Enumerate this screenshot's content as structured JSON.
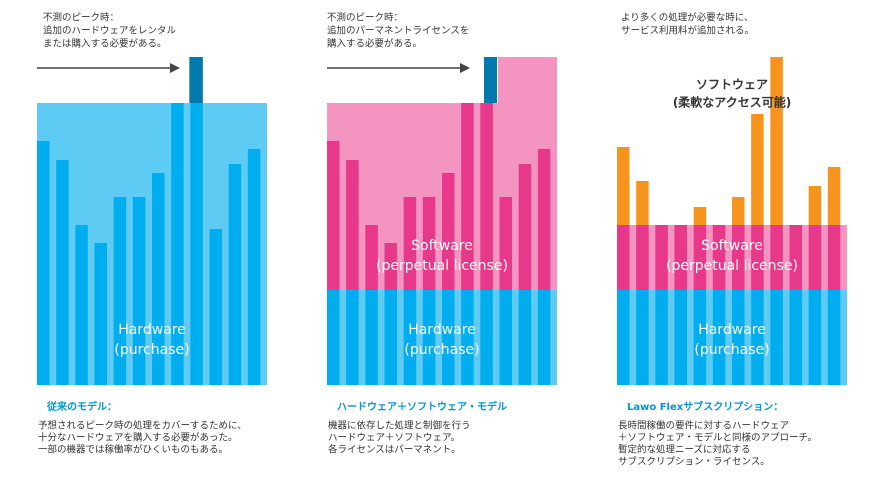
{
  "panels": [
    {
      "note": [
        "不測のピーク時：",
        "追加のハードウェアをレンタル",
        "または購入する必要がある。"
      ],
      "hardware": [
        "Hardware",
        "(purchase)"
      ],
      "title": "従来のモデル：",
      "description": [
        "予想されるピーク時の処理をカバーするために、",
        "十分なハードウェアを購入する必要があった。",
        "一部の機器では稼働率がひくいものもある。"
      ]
    },
    {
      "note": [
        "不測のピーク時：",
        "追加のパーマネントライセンスを",
        "購入する必要がある。"
      ],
      "software": [
        "Software",
        "(perpetual license)"
      ],
      "hardware": [
        "Hardware",
        "(purchase)"
      ],
      "title": "ハードウェア＋ソフトウェア・モデル",
      "description": [
        "機器に依存した処理と制御を行う",
        "ハードウェア＋ソフトウェア。",
        " 各ライセンスはパーマネント。"
      ]
    },
    {
      "note": [
        "より多くの処理が必要な時に、",
        "サービス利用料が追加される。"
      ],
      "flex": [
        "ソフトウェア",
        "(柔軟なアクセス可能)"
      ],
      "software": [
        "Software",
        "(perpetual license)"
      ],
      "hardware": [
        "Hardware",
        "(purchase)"
      ],
      "title": "Lawo Flexサブスクリプション：",
      "description": [
        "長時間稼働の要件に対するハードウェア",
        "＋ソフトウェア・モデルと同様のアプローチ。",
        "暫定的な処理ニーズに対応する",
        "サブスクリプション・ライセンス。"
      ]
    }
  ]
}
